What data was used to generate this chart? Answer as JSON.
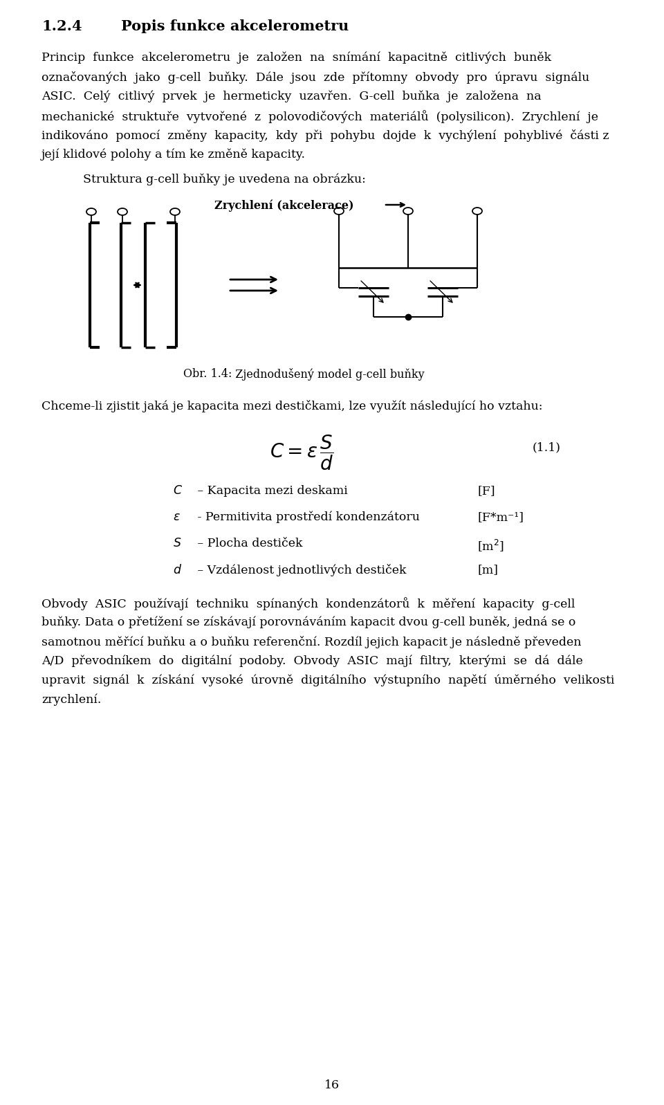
{
  "title_num": "1.2.4",
  "title_text": "Popis funkce akcelerometru",
  "p1_lines": [
    "Princip  funkce  akcelerometru  je  založen  na  snímání  kapacitně  citlivých  buněk",
    "označovaných  jako  g-cell  buňky.  Dále  jsou  zde  přítomny  obvody  pro  úpravu  signálu",
    "ASIC.  Celý  citlivý  prvek  je  hermeticky  uzavřen.  G-cell  buňka  je  založena  na",
    "mechanické  struktuře  vytvořené  z  polovodičových  materiálů  (polysilicon).  Zrychlení  je",
    "indikováno  pomocí  změny  kapacity,  kdy  při  pohybu  dojde  k  vychýlení  pohyblivé  části z",
    "její klidové polohy a tím ke změně kapacity."
  ],
  "struct_line": "Struktura g-cell buňky je uvedena na obrázku:",
  "accel_label": "Zrychlení (akcelerace)",
  "fig_caption_num": "Obr. 1.4:",
  "fig_caption_text": "  Zjednodušený model g-cell buňky",
  "para2": "Chceme-li zjistit jaká je kapacita mezi destičkami, lze využít následující ho vztahu:",
  "formula_num": "(1.1)",
  "var1_sym": "C",
  "var1_desc": " – Kapacita mezi deskami",
  "var1_unit": "[F]",
  "var2_sym": "ε",
  "var2_desc": " - Permitivita prostředí kondenzátoru",
  "var2_unit": "[F*m⁻¹]",
  "var3_sym": "S",
  "var3_desc": " – Plocha destiček",
  "var3_unit": "[m²]",
  "var4_sym": "d",
  "var4_desc": " – Vzdálenost jednotlivých destiček",
  "var4_unit": "[m]",
  "p3_lines": [
    "Obvody  ASIC  používají  techniku  spínaných  kondenzátorů  k  měření  kapacity  g-cell",
    "buňky. Data o přetížení se získávají porovnáváním kapacit dvou g-cell buněk, jedná se o",
    "samotnou měřící buňku a o buňku referenční. Rozdíl jejich kapacit je následně převeden",
    "A/D  převodníkem  do  digitální  podoby.  Obvody  ASIC  mají  filtry,  kterými  se  dá  dále",
    "upravit  signál  k  získání  vysoké  úrovně  digitálního  výstupního  napětí  úměrného  velikosti",
    "zrychlení."
  ],
  "page_num": "16",
  "bg_color": "#ffffff"
}
